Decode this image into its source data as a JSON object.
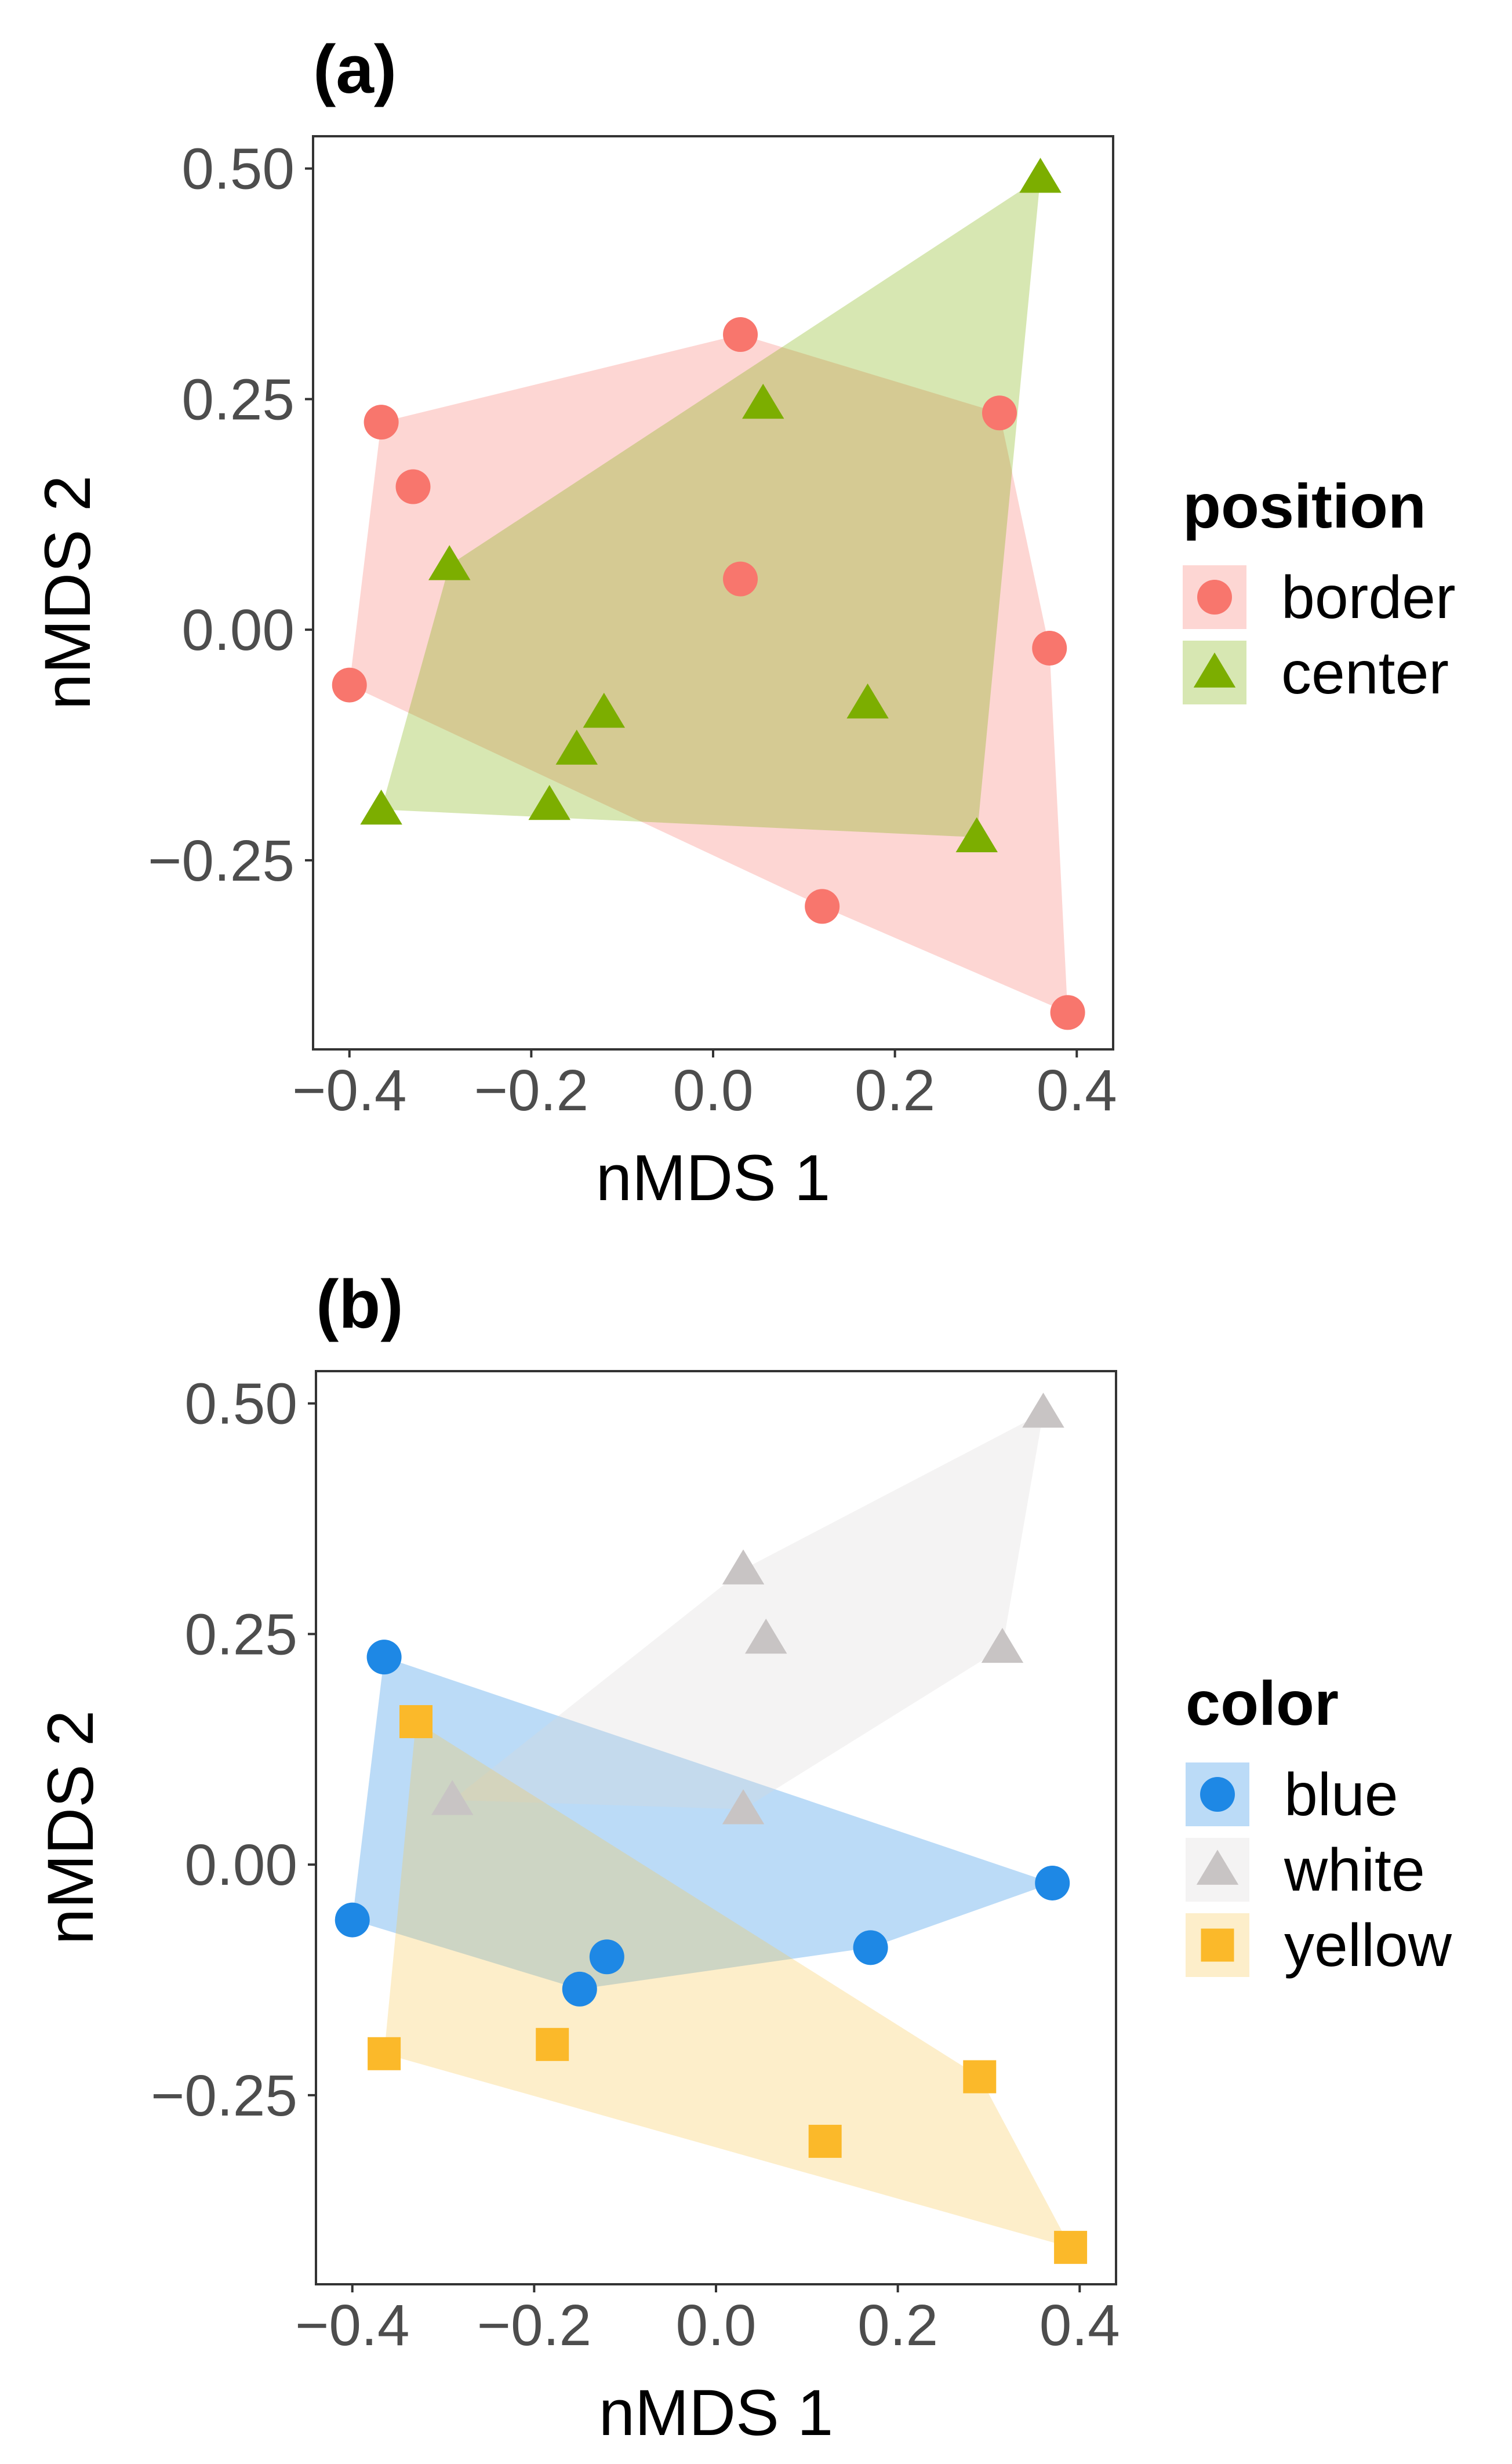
{
  "chart_data": [
    {
      "type": "scatter",
      "panel_label": "(a)",
      "xlabel": "nMDS 1",
      "ylabel": "nMDS 2",
      "xlim": [
        -0.44,
        0.44
      ],
      "ylim": [
        -0.455,
        0.535
      ],
      "xticks": [
        -0.4,
        -0.2,
        0.0,
        0.2,
        0.4
      ],
      "xtick_labels": [
        "−0.4",
        "−0.2",
        "0.0",
        "0.2",
        "0.4"
      ],
      "yticks": [
        -0.25,
        0.0,
        0.25,
        0.5
      ],
      "ytick_labels": [
        "−0.25",
        "0.00",
        "0.25",
        "0.50"
      ],
      "grid": false,
      "hulls": true,
      "legend": {
        "title": "position",
        "placement": "right",
        "entries": [
          "border",
          "center"
        ]
      },
      "series": [
        {
          "name": "border",
          "shape": "circle",
          "color": "#F8766D",
          "fill": "#F8766D",
          "points": [
            {
              "x": 0.03,
              "y": 0.32
            },
            {
              "x": -0.365,
              "y": 0.225
            },
            {
              "x": -0.33,
              "y": 0.155
            },
            {
              "x": 0.315,
              "y": 0.235
            },
            {
              "x": 0.03,
              "y": 0.055
            },
            {
              "x": 0.37,
              "y": -0.02
            },
            {
              "x": -0.4,
              "y": -0.06
            },
            {
              "x": 0.12,
              "y": -0.3
            },
            {
              "x": 0.39,
              "y": -0.415
            }
          ]
        },
        {
          "name": "center",
          "shape": "triangle",
          "color": "#7CAE00",
          "fill": "#7CAE00",
          "points": [
            {
              "x": 0.36,
              "y": 0.49
            },
            {
              "x": 0.055,
              "y": 0.245
            },
            {
              "x": -0.29,
              "y": 0.07
            },
            {
              "x": -0.12,
              "y": -0.09
            },
            {
              "x": -0.15,
              "y": -0.13
            },
            {
              "x": 0.17,
              "y": -0.08
            },
            {
              "x": -0.365,
              "y": -0.195
            },
            {
              "x": -0.18,
              "y": -0.19
            },
            {
              "x": 0.29,
              "y": -0.225
            }
          ]
        }
      ]
    },
    {
      "type": "scatter",
      "panel_label": "(b)",
      "xlabel": "nMDS 1",
      "ylabel": "nMDS 2",
      "xlim": [
        -0.44,
        0.44
      ],
      "ylim": [
        -0.455,
        0.535
      ],
      "xticks": [
        -0.4,
        -0.2,
        0.0,
        0.2,
        0.4
      ],
      "xtick_labels": [
        "−0.4",
        "−0.2",
        "0.0",
        "0.2",
        "0.4"
      ],
      "yticks": [
        -0.25,
        0.0,
        0.25,
        0.5
      ],
      "ytick_labels": [
        "−0.25",
        "0.00",
        "0.25",
        "0.50"
      ],
      "grid": false,
      "hulls": true,
      "legend": {
        "title": "color",
        "placement": "right",
        "entries": [
          "blue",
          "white",
          "yellow"
        ]
      },
      "series": [
        {
          "name": "blue",
          "shape": "circle",
          "color": "#1E88E5",
          "fill": "#1E88E5",
          "points": [
            {
              "x": -0.365,
              "y": 0.225
            },
            {
              "x": 0.37,
              "y": -0.02
            },
            {
              "x": -0.4,
              "y": -0.06
            },
            {
              "x": 0.17,
              "y": -0.09
            },
            {
              "x": -0.12,
              "y": -0.1
            },
            {
              "x": -0.15,
              "y": -0.135
            }
          ]
        },
        {
          "name": "white",
          "shape": "triangle",
          "color": "#C8C4C4",
          "fill": "#D9D6D6",
          "points": [
            {
              "x": 0.36,
              "y": 0.49
            },
            {
              "x": 0.03,
              "y": 0.32
            },
            {
              "x": 0.055,
              "y": 0.245
            },
            {
              "x": 0.315,
              "y": 0.235
            },
            {
              "x": -0.29,
              "y": 0.07
            },
            {
              "x": 0.03,
              "y": 0.06
            }
          ]
        },
        {
          "name": "yellow",
          "shape": "square",
          "color": "#FBB92A",
          "fill": "#F9C74F",
          "points": [
            {
              "x": -0.33,
              "y": 0.155
            },
            {
              "x": -0.365,
              "y": -0.205
            },
            {
              "x": -0.18,
              "y": -0.195
            },
            {
              "x": 0.29,
              "y": -0.23
            },
            {
              "x": 0.12,
              "y": -0.3
            },
            {
              "x": 0.39,
              "y": -0.415
            }
          ]
        }
      ]
    }
  ]
}
